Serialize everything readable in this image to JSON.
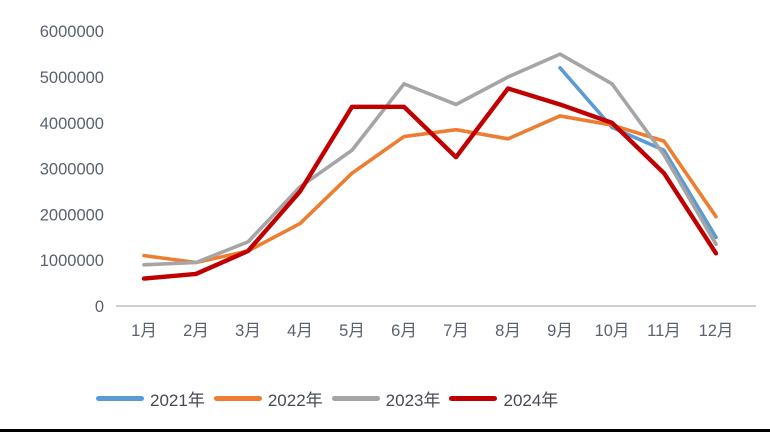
{
  "chart_data": {
    "type": "line",
    "title": "",
    "xlabel": "",
    "ylabel": "",
    "categories": [
      "1月",
      "2月",
      "3月",
      "4月",
      "5月",
      "6月",
      "7月",
      "8月",
      "9月",
      "10月",
      "11月",
      "12月"
    ],
    "series": [
      {
        "name": "2021年",
        "color": "#5B9BD5",
        "values": [
          null,
          null,
          null,
          null,
          null,
          null,
          null,
          null,
          5200000,
          3900000,
          3400000,
          1500000
        ]
      },
      {
        "name": "2022年",
        "color": "#ED7D31",
        "values": [
          1100000,
          950000,
          1200000,
          1800000,
          2900000,
          3700000,
          3850000,
          3650000,
          4150000,
          3950000,
          3600000,
          1950000
        ]
      },
      {
        "name": "2023年",
        "color": "#A5A5A5",
        "values": [
          900000,
          950000,
          1400000,
          2600000,
          3400000,
          4850000,
          4400000,
          5000000,
          5500000,
          4850000,
          3300000,
          1350000
        ]
      },
      {
        "name": "2024年",
        "color": "#C00000",
        "values": [
          600000,
          700000,
          1200000,
          2500000,
          4350000,
          4350000,
          3250000,
          4750000,
          4400000,
          4000000,
          2900000,
          1150000
        ]
      }
    ],
    "ylim": [
      0,
      6000000
    ],
    "ytick_interval": 1000000,
    "yticks": [
      "6000000",
      "5000000",
      "4000000",
      "3000000",
      "2000000",
      "1000000",
      "0"
    ],
    "grid": false,
    "legend_position": "bottom"
  },
  "colors": {
    "background": "#FFFFFF",
    "axis_line": "#BFBFBF",
    "axis_text": "#5a6170",
    "legend_text": "#454a54",
    "bottom_rule": "#000000"
  }
}
